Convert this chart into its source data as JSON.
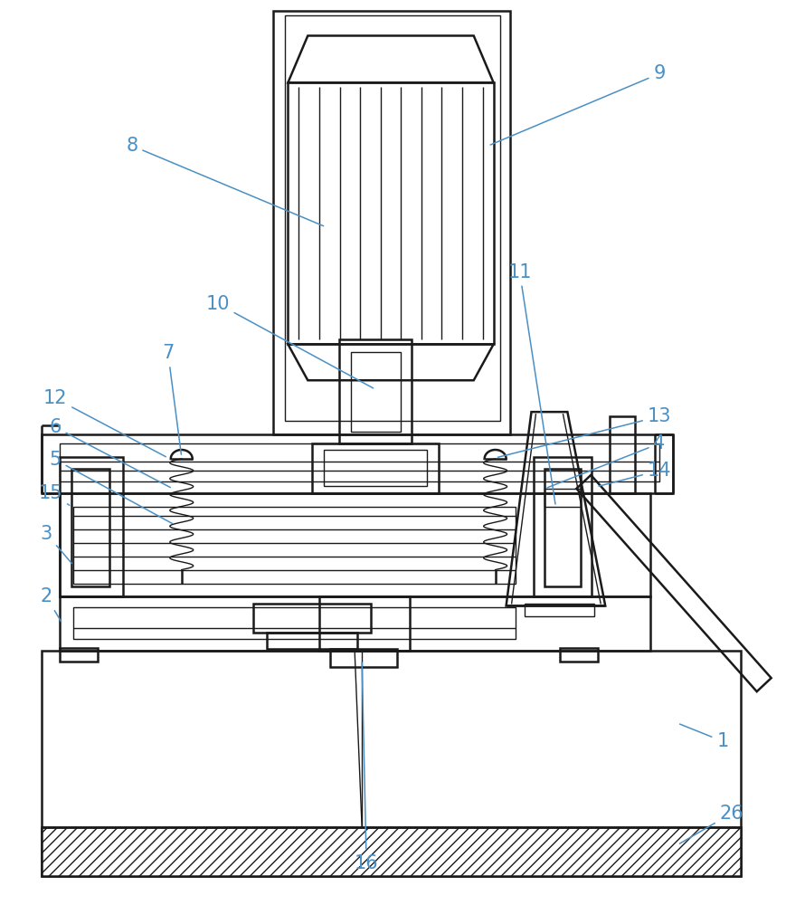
{
  "bg": "#ffffff",
  "lc": "#1a1a1a",
  "lbl": "#4a90c4",
  "lw": 1.8,
  "lw_thin": 1.0,
  "fig_w": 8.69,
  "fig_h": 10.0,
  "dpi": 100
}
